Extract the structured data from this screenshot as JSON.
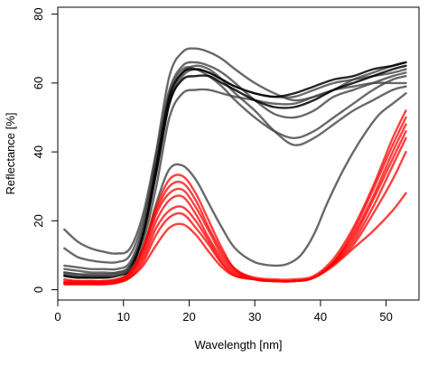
{
  "chart_data": {
    "type": "line",
    "title": "",
    "xlabel": "Wavelength [nm]",
    "ylabel": "Reflectance [%]",
    "xlim": [
      0,
      55
    ],
    "ylim": [
      -3,
      82
    ],
    "xticks": [
      0,
      10,
      20,
      30,
      40,
      50
    ],
    "yticks": [
      0,
      20,
      40,
      60,
      80
    ],
    "xtick_labels": [
      "0",
      "10",
      "20",
      "30",
      "40",
      "50"
    ],
    "ytick_labels": [
      "0",
      "20",
      "40",
      "60",
      "80"
    ],
    "grid": false,
    "legend": "none",
    "colors": {
      "dark": "#000000",
      "gray": "#444444",
      "red": "#ff0000"
    },
    "series": [
      {
        "color": "#444444",
        "opacity": 0.8,
        "x": [
          1,
          3,
          5,
          7,
          9,
          11,
          13,
          15,
          17,
          19,
          21,
          23,
          25,
          27,
          30,
          33,
          36,
          39,
          42,
          45,
          48,
          51,
          53
        ],
        "y": [
          17.5,
          14,
          12,
          11,
          10.5,
          12,
          22,
          40,
          58,
          65,
          66,
          65,
          63,
          60,
          55,
          51,
          50,
          52,
          56,
          58,
          60,
          62,
          63
        ]
      },
      {
        "color": "#444444",
        "opacity": 0.8,
        "x": [
          1,
          3,
          5,
          7,
          9,
          11,
          13,
          15,
          17,
          19,
          21,
          23,
          25,
          27,
          30,
          33,
          36,
          39,
          42,
          45,
          48,
          51,
          53
        ],
        "y": [
          12,
          9.5,
          8.5,
          8,
          8,
          10,
          20,
          38,
          57,
          64,
          64,
          62,
          59,
          55,
          50,
          46,
          44,
          46,
          50,
          54,
          58,
          61,
          62
        ]
      },
      {
        "color": "#444444",
        "opacity": 0.8,
        "x": [
          1,
          3,
          5,
          7,
          9,
          11,
          13,
          15,
          17,
          19,
          21,
          23,
          25,
          27,
          30,
          33,
          36,
          39,
          42,
          45,
          48,
          51,
          53
        ],
        "y": [
          7,
          6.5,
          6,
          6,
          6,
          8,
          18,
          36,
          55,
          63,
          65,
          64,
          61,
          57,
          52,
          46,
          42,
          44,
          48,
          52,
          55,
          58,
          59
        ]
      },
      {
        "color": "#444444",
        "opacity": 0.8,
        "x": [
          1,
          3,
          5,
          7,
          9,
          11,
          13,
          15,
          17,
          19,
          21,
          23,
          25,
          27,
          30,
          33,
          36,
          39,
          42,
          45,
          48,
          51,
          53
        ],
        "y": [
          6,
          5.5,
          5,
          5,
          5,
          7,
          16,
          34,
          54,
          62,
          64,
          63,
          61,
          59,
          57,
          56,
          56,
          58,
          60,
          61,
          62,
          63,
          64
        ]
      },
      {
        "color": "#444444",
        "opacity": 0.8,
        "x": [
          1,
          3,
          5,
          7,
          9,
          11,
          13,
          15,
          17,
          19,
          21,
          23,
          25,
          27,
          30,
          33,
          36,
          39,
          42,
          45,
          48,
          51,
          53
        ],
        "y": [
          5,
          4.5,
          4.5,
          4.5,
          5,
          7,
          18,
          40,
          62,
          69,
          70,
          69,
          67,
          64,
          60,
          57,
          55,
          56,
          58,
          61,
          63,
          65,
          66
        ]
      },
      {
        "color": "#444444",
        "opacity": 0.8,
        "x": [
          1,
          3,
          5,
          7,
          9,
          11,
          13,
          15,
          17,
          19,
          21,
          23,
          25,
          27,
          30,
          33,
          36,
          39,
          42,
          45,
          48,
          51,
          53
        ],
        "y": [
          4.5,
          4,
          4,
          4,
          4.5,
          6,
          14,
          30,
          50,
          57,
          58,
          58,
          57,
          56,
          55,
          54,
          54,
          56,
          58,
          59,
          60,
          60,
          60
        ]
      },
      {
        "color": "#000000",
        "opacity": 0.85,
        "x": [
          1,
          3,
          5,
          7,
          9,
          11,
          13,
          15,
          17,
          19,
          21,
          23,
          25,
          27,
          30,
          33,
          36,
          39,
          42,
          45,
          48,
          51,
          53
        ],
        "y": [
          4,
          3.5,
          3.5,
          3.5,
          4,
          6,
          16,
          36,
          56,
          63,
          64,
          63,
          61,
          59,
          57,
          56,
          57,
          59,
          61,
          62,
          64,
          65,
          66
        ]
      },
      {
        "color": "#000000",
        "opacity": 0.85,
        "x": [
          1,
          3,
          5,
          7,
          9,
          11,
          13,
          15,
          17,
          19,
          21,
          23,
          25,
          27,
          30,
          33,
          36,
          39,
          42,
          45,
          48,
          51,
          53
        ],
        "y": [
          4,
          3.5,
          3.5,
          3.5,
          4,
          6,
          16,
          34,
          54,
          61,
          62,
          62,
          60,
          58,
          55,
          53,
          53,
          55,
          58,
          60,
          62,
          64,
          65
        ]
      },
      {
        "color": "#444444",
        "opacity": 0.8,
        "x": [
          1,
          3,
          5,
          7,
          9,
          11,
          13,
          15,
          17,
          19,
          21,
          23,
          25,
          27,
          30,
          33,
          35,
          37,
          39,
          41,
          43,
          45,
          47,
          49,
          51,
          53
        ],
        "y": [
          5,
          4.5,
          4,
          4,
          4,
          6,
          12,
          25,
          35,
          36,
          32,
          25,
          18,
          12,
          8,
          7,
          7.5,
          10,
          16,
          25,
          33,
          40,
          46,
          51,
          54,
          57
        ]
      },
      {
        "color": "#ff0000",
        "opacity": 0.75,
        "x": [
          1,
          3,
          5,
          7,
          9,
          11,
          13,
          15,
          17,
          19,
          21,
          23,
          25,
          27,
          30,
          33,
          36,
          39,
          42,
          45,
          48,
          51,
          53
        ],
        "y": [
          3,
          2.5,
          2.5,
          2.5,
          3,
          5,
          12,
          24,
          32,
          33,
          28,
          20,
          12,
          6,
          3.5,
          3,
          3,
          4,
          9,
          18,
          30,
          44,
          52
        ]
      },
      {
        "color": "#ff0000",
        "opacity": 0.75,
        "x": [
          1,
          3,
          5,
          7,
          9,
          11,
          13,
          15,
          17,
          19,
          21,
          23,
          25,
          27,
          30,
          33,
          36,
          39,
          42,
          45,
          48,
          51,
          53
        ],
        "y": [
          2.5,
          2.5,
          2.5,
          2.5,
          3,
          5,
          12,
          23,
          30,
          31,
          26,
          18,
          11,
          6,
          3,
          2.5,
          2.5,
          3.5,
          8,
          17,
          29,
          42,
          50
        ]
      },
      {
        "color": "#ff0000",
        "opacity": 0.75,
        "x": [
          1,
          3,
          5,
          7,
          9,
          11,
          13,
          15,
          17,
          19,
          21,
          23,
          25,
          27,
          30,
          33,
          36,
          39,
          42,
          45,
          48,
          51,
          53
        ],
        "y": [
          2,
          2,
          2,
          2,
          2.5,
          4.5,
          11,
          22,
          28,
          29,
          24,
          17,
          10,
          5.5,
          3,
          2.5,
          2.5,
          3.5,
          8,
          16,
          27,
          40,
          48
        ]
      },
      {
        "color": "#ff0000",
        "opacity": 0.75,
        "x": [
          1,
          3,
          5,
          7,
          9,
          11,
          13,
          15,
          17,
          19,
          21,
          23,
          25,
          27,
          30,
          33,
          36,
          39,
          42,
          45,
          48,
          51,
          53
        ],
        "y": [
          2,
          2,
          2,
          2,
          2.5,
          4.5,
          10,
          20,
          26,
          27,
          22,
          15,
          9,
          5,
          3,
          2.5,
          2.5,
          3.5,
          8,
          15,
          26,
          38,
          46
        ]
      },
      {
        "color": "#ff0000",
        "opacity": 0.75,
        "x": [
          1,
          3,
          5,
          7,
          9,
          11,
          13,
          15,
          17,
          19,
          21,
          23,
          25,
          27,
          30,
          33,
          36,
          39,
          42,
          45,
          48,
          51,
          53
        ],
        "y": [
          2,
          1.8,
          1.8,
          1.8,
          2.2,
          4,
          9,
          18,
          23,
          24,
          20,
          14,
          8,
          4.5,
          3,
          2.5,
          2.5,
          3.5,
          7.5,
          14,
          24,
          36,
          44
        ]
      },
      {
        "color": "#ff0000",
        "opacity": 0.75,
        "x": [
          1,
          3,
          5,
          7,
          9,
          11,
          13,
          15,
          17,
          19,
          21,
          23,
          25,
          27,
          30,
          33,
          36,
          39,
          42,
          45,
          48,
          51,
          53
        ],
        "y": [
          1.8,
          1.8,
          1.8,
          1.8,
          2,
          3.5,
          8,
          16,
          21,
          22,
          18,
          13,
          7.5,
          4,
          3,
          2.5,
          2.5,
          3.5,
          7.5,
          13,
          22,
          32,
          40
        ]
      },
      {
        "color": "#ff0000",
        "opacity": 0.75,
        "x": [
          1,
          3,
          5,
          7,
          9,
          11,
          13,
          15,
          17,
          19,
          21,
          23,
          25,
          27,
          30,
          33,
          36,
          39,
          42,
          45,
          48,
          51,
          53
        ],
        "y": [
          1.5,
          1.5,
          1.5,
          1.5,
          2,
          3.5,
          7,
          13,
          18,
          19,
          16,
          11,
          6.5,
          4,
          3,
          2.5,
          2.5,
          3.5,
          7,
          12,
          17,
          23,
          28
        ]
      }
    ]
  }
}
